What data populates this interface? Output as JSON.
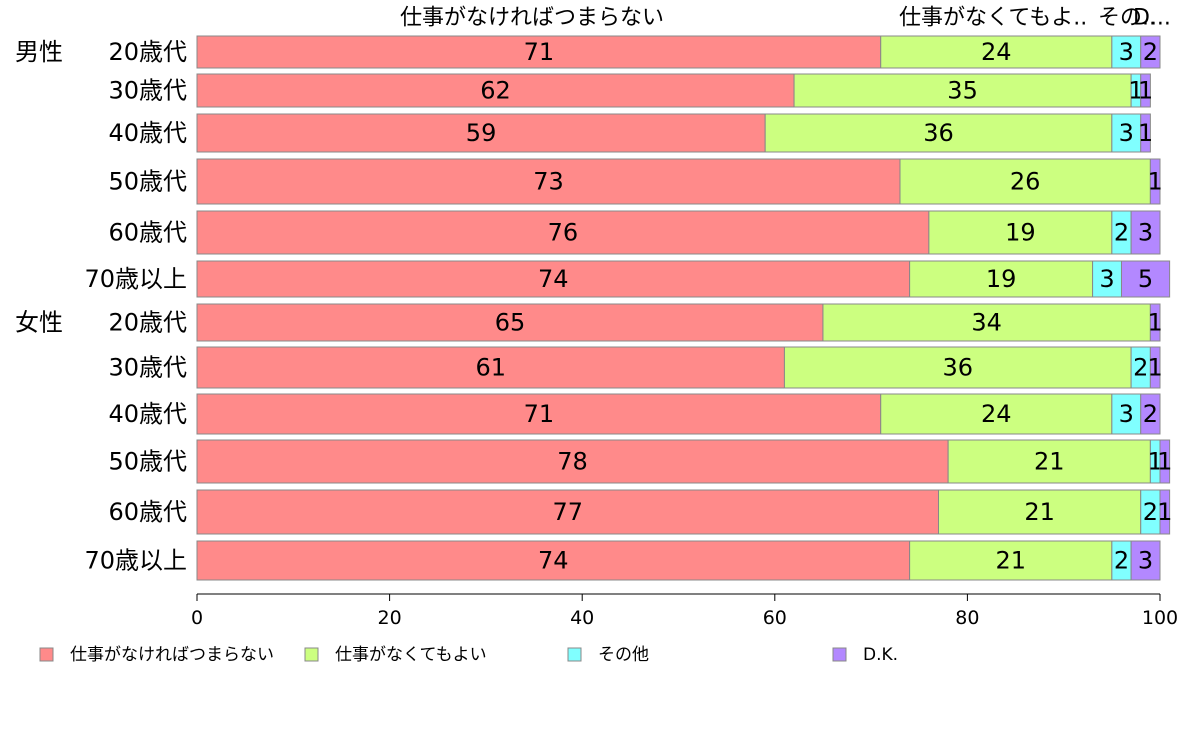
{
  "chart_data": {
    "type": "bar",
    "orientation": "horizontal",
    "stacked": true,
    "series": [
      {
        "name": "仕事がなければつまらない",
        "color": "#ff8a8a",
        "values": [
          71,
          62,
          59,
          73,
          76,
          74,
          65,
          61,
          71,
          78,
          77,
          74
        ]
      },
      {
        "name": "仕事がなくてもよい",
        "color": "#ccff80",
        "values": [
          24,
          35,
          36,
          26,
          19,
          19,
          34,
          36,
          24,
          21,
          21,
          21
        ]
      },
      {
        "name": "その他",
        "color": "#80ffff",
        "values": [
          3,
          1,
          3,
          0,
          2,
          3,
          0,
          2,
          3,
          1,
          2,
          2
        ]
      },
      {
        "name": "D.K.",
        "color": "#b388ff",
        "values": [
          2,
          1,
          1,
          1,
          3,
          5,
          1,
          1,
          2,
          1,
          1,
          3
        ]
      }
    ],
    "groups": [
      {
        "label": "男性",
        "rows": [
          "20歳代",
          "30歳代",
          "40歳代",
          "50歳代",
          "60歳代",
          "70歳以上"
        ]
      },
      {
        "label": "女性",
        "rows": [
          "20歳代",
          "30歳代",
          "40歳代",
          "50歳代",
          "60歳代",
          "70歳以上"
        ]
      }
    ],
    "top_labels": [
      "仕事がなければつまらない",
      "仕事がなくてもよ..",
      "その..",
      "D..."
    ],
    "xlim": [
      0,
      100
    ],
    "xticks": [
      "0",
      "20",
      "40",
      "60",
      "80",
      "100"
    ],
    "legend_position": "bottom",
    "grid": false
  }
}
